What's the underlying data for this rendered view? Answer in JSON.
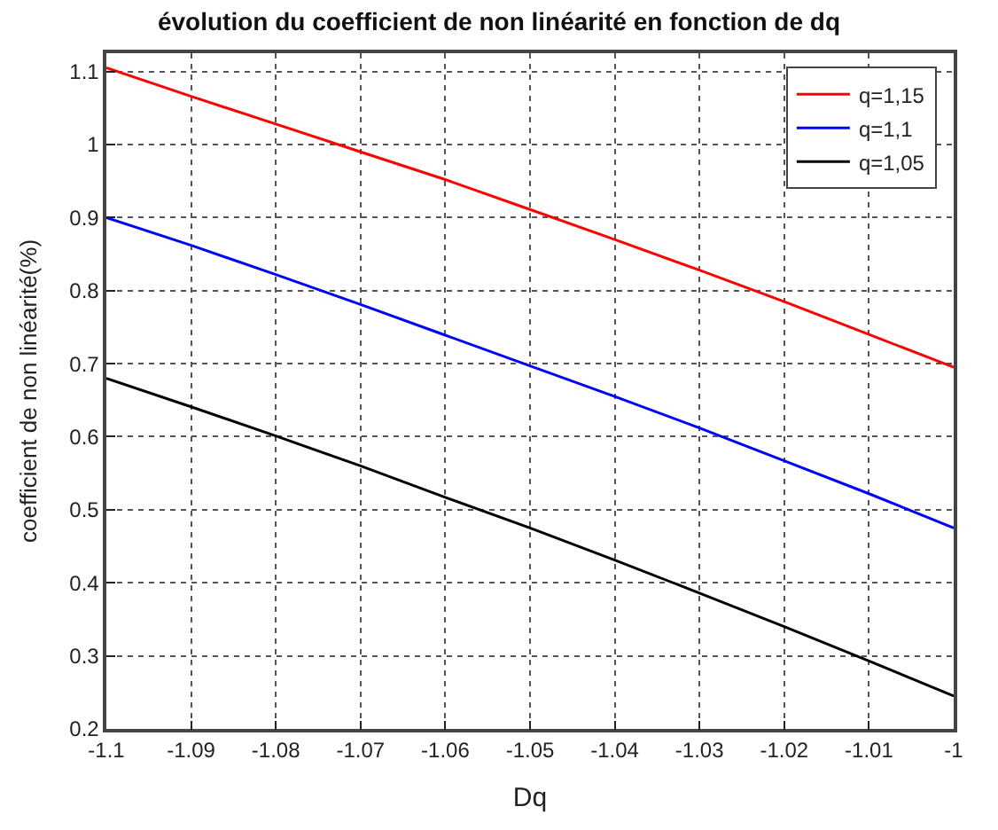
{
  "chart_data": {
    "type": "line",
    "title": "évolution du coefficient de non linéarité en fonction de dq",
    "xlabel": "Dq",
    "ylabel": "coefficient de non linéarité(%)",
    "x": [
      -1.1,
      -1.09,
      -1.08,
      -1.07,
      -1.06,
      -1.05,
      -1.04,
      -1.03,
      -1.02,
      -1.01,
      -1.0
    ],
    "series": [
      {
        "name": "q=1,15",
        "color": "#ff0000",
        "values": [
          1.105,
          1.066,
          1.028,
          0.99,
          0.952,
          0.911,
          0.87,
          0.828,
          0.785,
          0.74,
          0.695
        ]
      },
      {
        "name": "q=1,1",
        "color": "#0000ff",
        "values": [
          0.9,
          0.862,
          0.822,
          0.781,
          0.739,
          0.697,
          0.655,
          0.612,
          0.567,
          0.522,
          0.475
        ]
      },
      {
        "name": "q=1,05",
        "color": "#000000",
        "values": [
          0.68,
          0.641,
          0.601,
          0.56,
          0.517,
          0.475,
          0.431,
          0.386,
          0.34,
          0.293,
          0.245
        ]
      }
    ],
    "xlim": [
      -1.1,
      -1.0
    ],
    "xticks": [
      -1.1,
      -1.09,
      -1.08,
      -1.07,
      -1.06,
      -1.05,
      -1.04,
      -1.03,
      -1.02,
      -1.01,
      -1
    ],
    "ylim": [
      0.2,
      1.125
    ],
    "yticks": [
      0.2,
      0.3,
      0.4,
      0.5,
      0.6,
      0.7,
      0.8,
      0.9,
      1,
      1.1
    ],
    "grid": true,
    "legend": "top right",
    "marker": "none",
    "line_style": "solid"
  }
}
